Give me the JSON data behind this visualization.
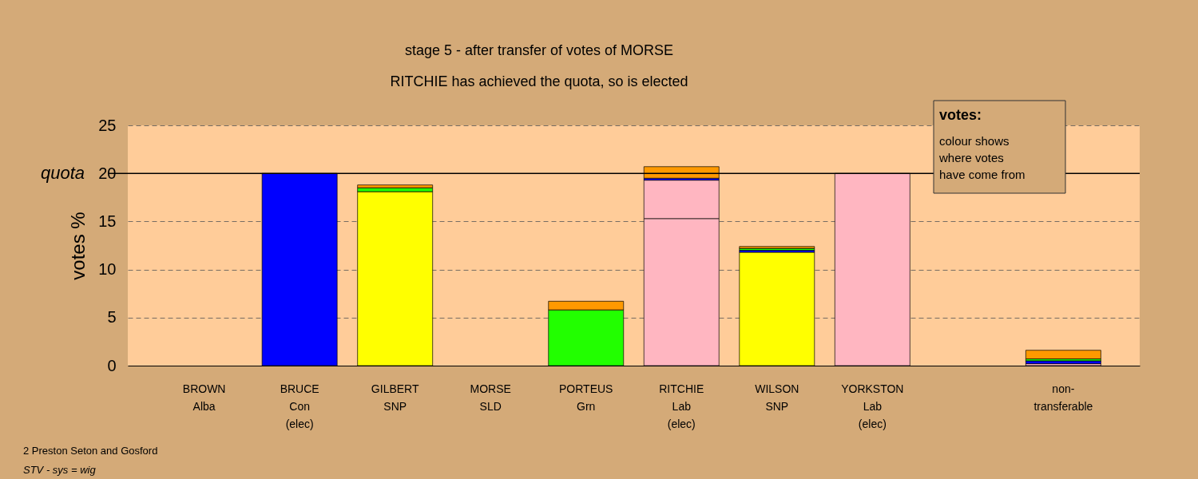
{
  "chart_data": {
    "type": "bar",
    "stacked": true,
    "title": "stage 5 - after transfer of votes of MORSE",
    "subtitle": "RITCHIE has achieved the quota, so is elected",
    "ylabel": "votes %",
    "categories": [
      "BROWN\nAlba",
      "BRUCE\nCon\n(elec)",
      "GILBERT\nSNP",
      "MORSE\nSLD",
      "PORTEUS\nGrn",
      "RITCHIE\nLab\n(elec)",
      "WILSON\nSNP",
      "YORKSTON\nLab\n(elec)",
      null,
      "non-\ntransferable"
    ],
    "series": [
      {
        "color": "#ffff00",
        "values": [
          null,
          null,
          18.1,
          null,
          null,
          null,
          11.8,
          null,
          null,
          null
        ]
      },
      {
        "color": "#ffb6c1",
        "values": [
          null,
          null,
          null,
          null,
          null,
          15.3,
          null,
          20.0,
          null,
          0.2
        ]
      },
      {
        "color": "#ffb6c1",
        "values": [
          null,
          null,
          null,
          null,
          null,
          4.0,
          null,
          null,
          null,
          null
        ]
      },
      {
        "color": "#0000ff",
        "values": [
          null,
          20.0,
          null,
          null,
          null,
          0.2,
          0.2,
          null,
          null,
          0.3
        ]
      },
      {
        "color": "#22ff00",
        "values": [
          null,
          null,
          0.4,
          null,
          5.8,
          null,
          0.2,
          null,
          null,
          0.2
        ]
      },
      {
        "color": "#ff9900",
        "values": [
          null,
          null,
          0.3,
          null,
          0.9,
          1.2,
          0.2,
          null,
          null,
          0.9
        ]
      }
    ],
    "ylim": [
      0,
      25
    ],
    "yticks": [
      0,
      5,
      10,
      15,
      20,
      25
    ],
    "grid": "y",
    "ref_lines": [
      {
        "axis": "y",
        "value": 20,
        "label": "quota"
      }
    ],
    "annotations": [
      "votes:",
      "colour shows\nwhere votes\nhave come from",
      "2 Preston Seton and Gosford",
      "STV - sys = wig"
    ]
  }
}
